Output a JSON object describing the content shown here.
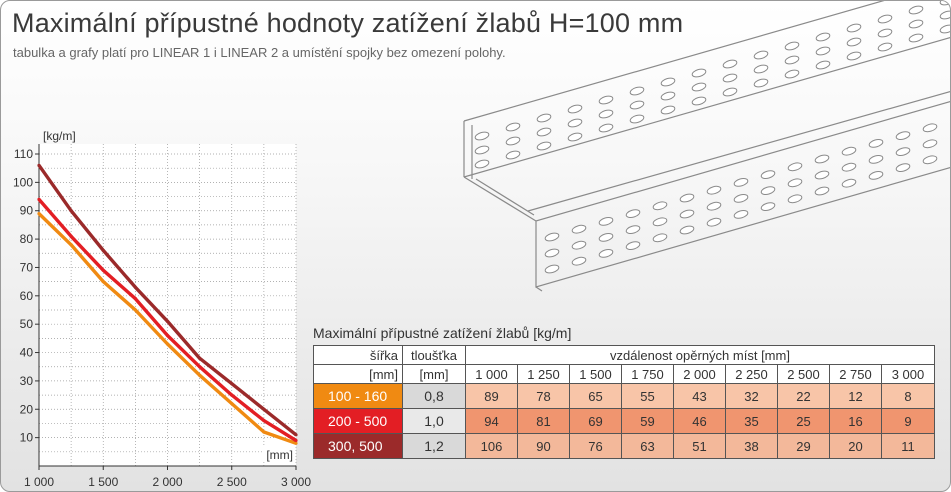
{
  "title": "Maximální přípustné hodnoty zatížení žlabů H=100 mm",
  "subtitle": "tabulka a grafy platí pro LINEAR 1 i LINEAR 2 a umístění spojky bez omezení polohy.",
  "colors": {
    "orange": "#f08a12",
    "red": "#e31e24",
    "darkred": "#9b2a2a"
  },
  "chart_data": {
    "type": "line",
    "x": [
      1000,
      1250,
      1500,
      1750,
      2000,
      2250,
      2500,
      2750,
      3000
    ],
    "series": [
      {
        "values": [
          89,
          78,
          65,
          55,
          43,
          32,
          22,
          12,
          8
        ],
        "color": "#f08a12"
      },
      {
        "values": [
          94,
          81,
          69,
          59,
          46,
          35,
          25,
          16,
          9
        ],
        "color": "#e31e24"
      },
      {
        "values": [
          106,
          90,
          76,
          63,
          51,
          38,
          29,
          20,
          11
        ],
        "color": "#9b2a2a"
      }
    ],
    "ylabel": "[kg/m]",
    "xlabel": "[mm]",
    "xlim": [
      1000,
      3000
    ],
    "ylim": [
      0,
      110
    ],
    "xticks": [
      1000,
      1500,
      2000,
      2500,
      3000
    ],
    "xtick_labels": [
      "1 000",
      "1 500",
      "2 000",
      "2 500",
      "3 000"
    ],
    "yticks": [
      10,
      20,
      30,
      40,
      50,
      60,
      70,
      80,
      90,
      100,
      110
    ],
    "grid": true
  },
  "table": {
    "title": "Maximální přípustné zatížení žlabů [kg/m]",
    "col_width": "šířka",
    "col_width_unit": "[mm]",
    "col_thickness": "tloušťka",
    "col_thickness_unit": "[mm]",
    "col_span": "vzdálenost opěrných míst [mm]",
    "spans": [
      "1 000",
      "1 250",
      "1 500",
      "1 750",
      "2 000",
      "2 250",
      "2 500",
      "2 750",
      "3 000"
    ],
    "rows": [
      {
        "width": "100 - 160",
        "thickness": "0,8",
        "color": "#f08a12",
        "values": [
          "89",
          "78",
          "65",
          "55",
          "43",
          "32",
          "22",
          "12",
          "8"
        ]
      },
      {
        "width": "200 - 500",
        "thickness": "1,0",
        "color": "#e31e24",
        "values": [
          "94",
          "81",
          "69",
          "59",
          "46",
          "35",
          "25",
          "16",
          "9"
        ]
      },
      {
        "width": "300, 500",
        "thickness": "1,2",
        "color": "#9b2a2a",
        "values": [
          "106",
          "90",
          "76",
          "63",
          "51",
          "38",
          "29",
          "20",
          "11"
        ]
      }
    ]
  }
}
